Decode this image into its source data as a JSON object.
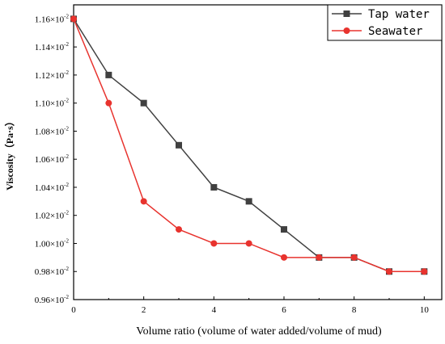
{
  "chart_data": {
    "type": "line",
    "xlabel": "Volume ratio (volume of water added/volume of mud)",
    "ylabel": "Viscosity（Pa·s）",
    "xlim": [
      0,
      10.5
    ],
    "ylim": [
      0.0096,
      0.0117
    ],
    "x_ticks": [
      0,
      2,
      4,
      6,
      8,
      10
    ],
    "x_tick_labels": [
      "0",
      "2",
      "4",
      "6",
      "8",
      "10"
    ],
    "y_tick_values": [
      0.0096,
      0.0098,
      0.01,
      0.0102,
      0.0104,
      0.0106,
      0.0108,
      0.011,
      0.0112,
      0.0114,
      0.0116
    ],
    "y_tick_mantissas": [
      "0.96",
      "0.98",
      "1.00",
      "1.02",
      "1.04",
      "1.06",
      "1.08",
      "1.10",
      "1.12",
      "1.14",
      "1.16"
    ],
    "y_tick_exponent": "-2",
    "y_tick_times": "×10",
    "legend_position": "top-right",
    "grid": false,
    "series": [
      {
        "name": "Tap water",
        "color": "#404040",
        "marker": "square",
        "x": [
          0,
          1,
          2,
          3,
          4,
          5,
          6,
          7,
          8,
          9,
          10
        ],
        "y": [
          0.0116,
          0.0112,
          0.011,
          0.0107,
          0.0104,
          0.0103,
          0.0101,
          0.0099,
          0.0099,
          0.0098,
          0.0098
        ]
      },
      {
        "name": "Seawater",
        "color": "#e8332e",
        "marker": "circle",
        "x": [
          0,
          1,
          2,
          3,
          4,
          5,
          6,
          7,
          8,
          9,
          10
        ],
        "y": [
          0.0116,
          0.011,
          0.0103,
          0.0101,
          0.01,
          0.01,
          0.0099,
          0.0099,
          0.0099,
          0.0098,
          0.0098
        ]
      }
    ]
  }
}
